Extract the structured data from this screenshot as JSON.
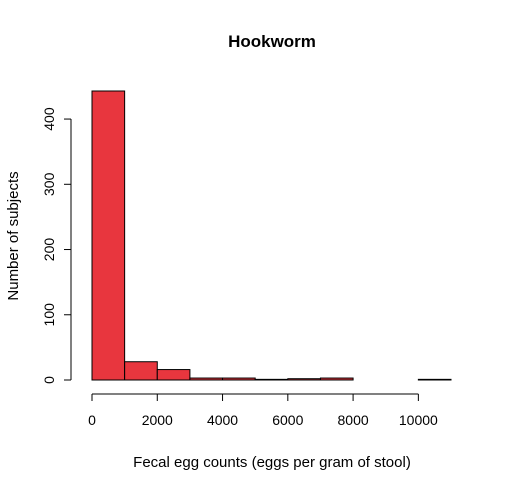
{
  "chart_data": {
    "type": "bar",
    "title": "Hookworm",
    "xlabel": "Fecal egg counts (eggs per gram of stool)",
    "ylabel": "Number of subjects",
    "bins": [
      {
        "start": 0,
        "end": 1000,
        "count": 443
      },
      {
        "start": 1000,
        "end": 2000,
        "count": 28
      },
      {
        "start": 2000,
        "end": 3000,
        "count": 16
      },
      {
        "start": 3000,
        "end": 4000,
        "count": 3
      },
      {
        "start": 4000,
        "end": 5000,
        "count": 3
      },
      {
        "start": 5000,
        "end": 6000,
        "count": 1
      },
      {
        "start": 6000,
        "end": 7000,
        "count": 2
      },
      {
        "start": 7000,
        "end": 8000,
        "count": 3
      },
      {
        "start": 8000,
        "end": 9000,
        "count": 0
      },
      {
        "start": 9000,
        "end": 10000,
        "count": 0
      },
      {
        "start": 10000,
        "end": 11000,
        "count": 1
      }
    ],
    "xticks": [
      0,
      2000,
      4000,
      6000,
      8000,
      10000
    ],
    "yticks": [
      0,
      100,
      200,
      300,
      400
    ],
    "xlim": [
      0,
      11000
    ],
    "ylim": [
      0,
      443
    ],
    "bar_color": "#e8363e",
    "grid": false,
    "legend": "none"
  }
}
